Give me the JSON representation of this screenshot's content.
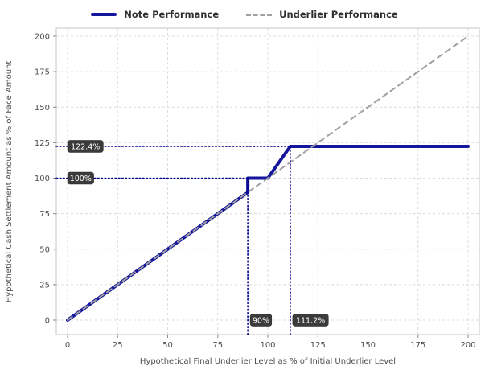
{
  "chart_data": {
    "type": "line",
    "title": "",
    "xlabel": "Hypothetical Final Underlier Level as % of Initial Underlier Level",
    "ylabel": "Hypothetical Cash Settlement Amount as % of Face Amount",
    "xlim": [
      0,
      200
    ],
    "ylim": [
      0,
      200
    ],
    "xticks": [
      0,
      25,
      50,
      75,
      100,
      125,
      150,
      175,
      200
    ],
    "yticks": [
      0,
      25,
      50,
      75,
      100,
      125,
      150,
      175,
      200
    ],
    "grid": true,
    "legend_position": "top",
    "series": [
      {
        "name": "Note Performance",
        "color": "#16169c",
        "style": "solid",
        "width": 4,
        "points": [
          [
            0,
            0
          ],
          [
            90,
            90
          ],
          [
            90,
            100
          ],
          [
            100,
            100
          ],
          [
            111.2,
            122.4
          ],
          [
            200,
            122.4
          ]
        ]
      },
      {
        "name": "Underlier Performance",
        "color": "#a0a0a0",
        "style": "dashed",
        "width": 2,
        "points": [
          [
            0,
            0
          ],
          [
            200,
            200
          ]
        ]
      }
    ],
    "annotations": {
      "dotted_color": "#00008b",
      "horizontal": [
        {
          "y": 122.4,
          "x_end": 111.2,
          "label": "122.4%"
        },
        {
          "y": 100,
          "x_end": 90,
          "label": "100%"
        }
      ],
      "vertical": [
        {
          "x": 90,
          "y_end": 100,
          "label": "90%"
        },
        {
          "x": 111.2,
          "y_end": 122.4,
          "label": "111.2%"
        }
      ]
    }
  }
}
